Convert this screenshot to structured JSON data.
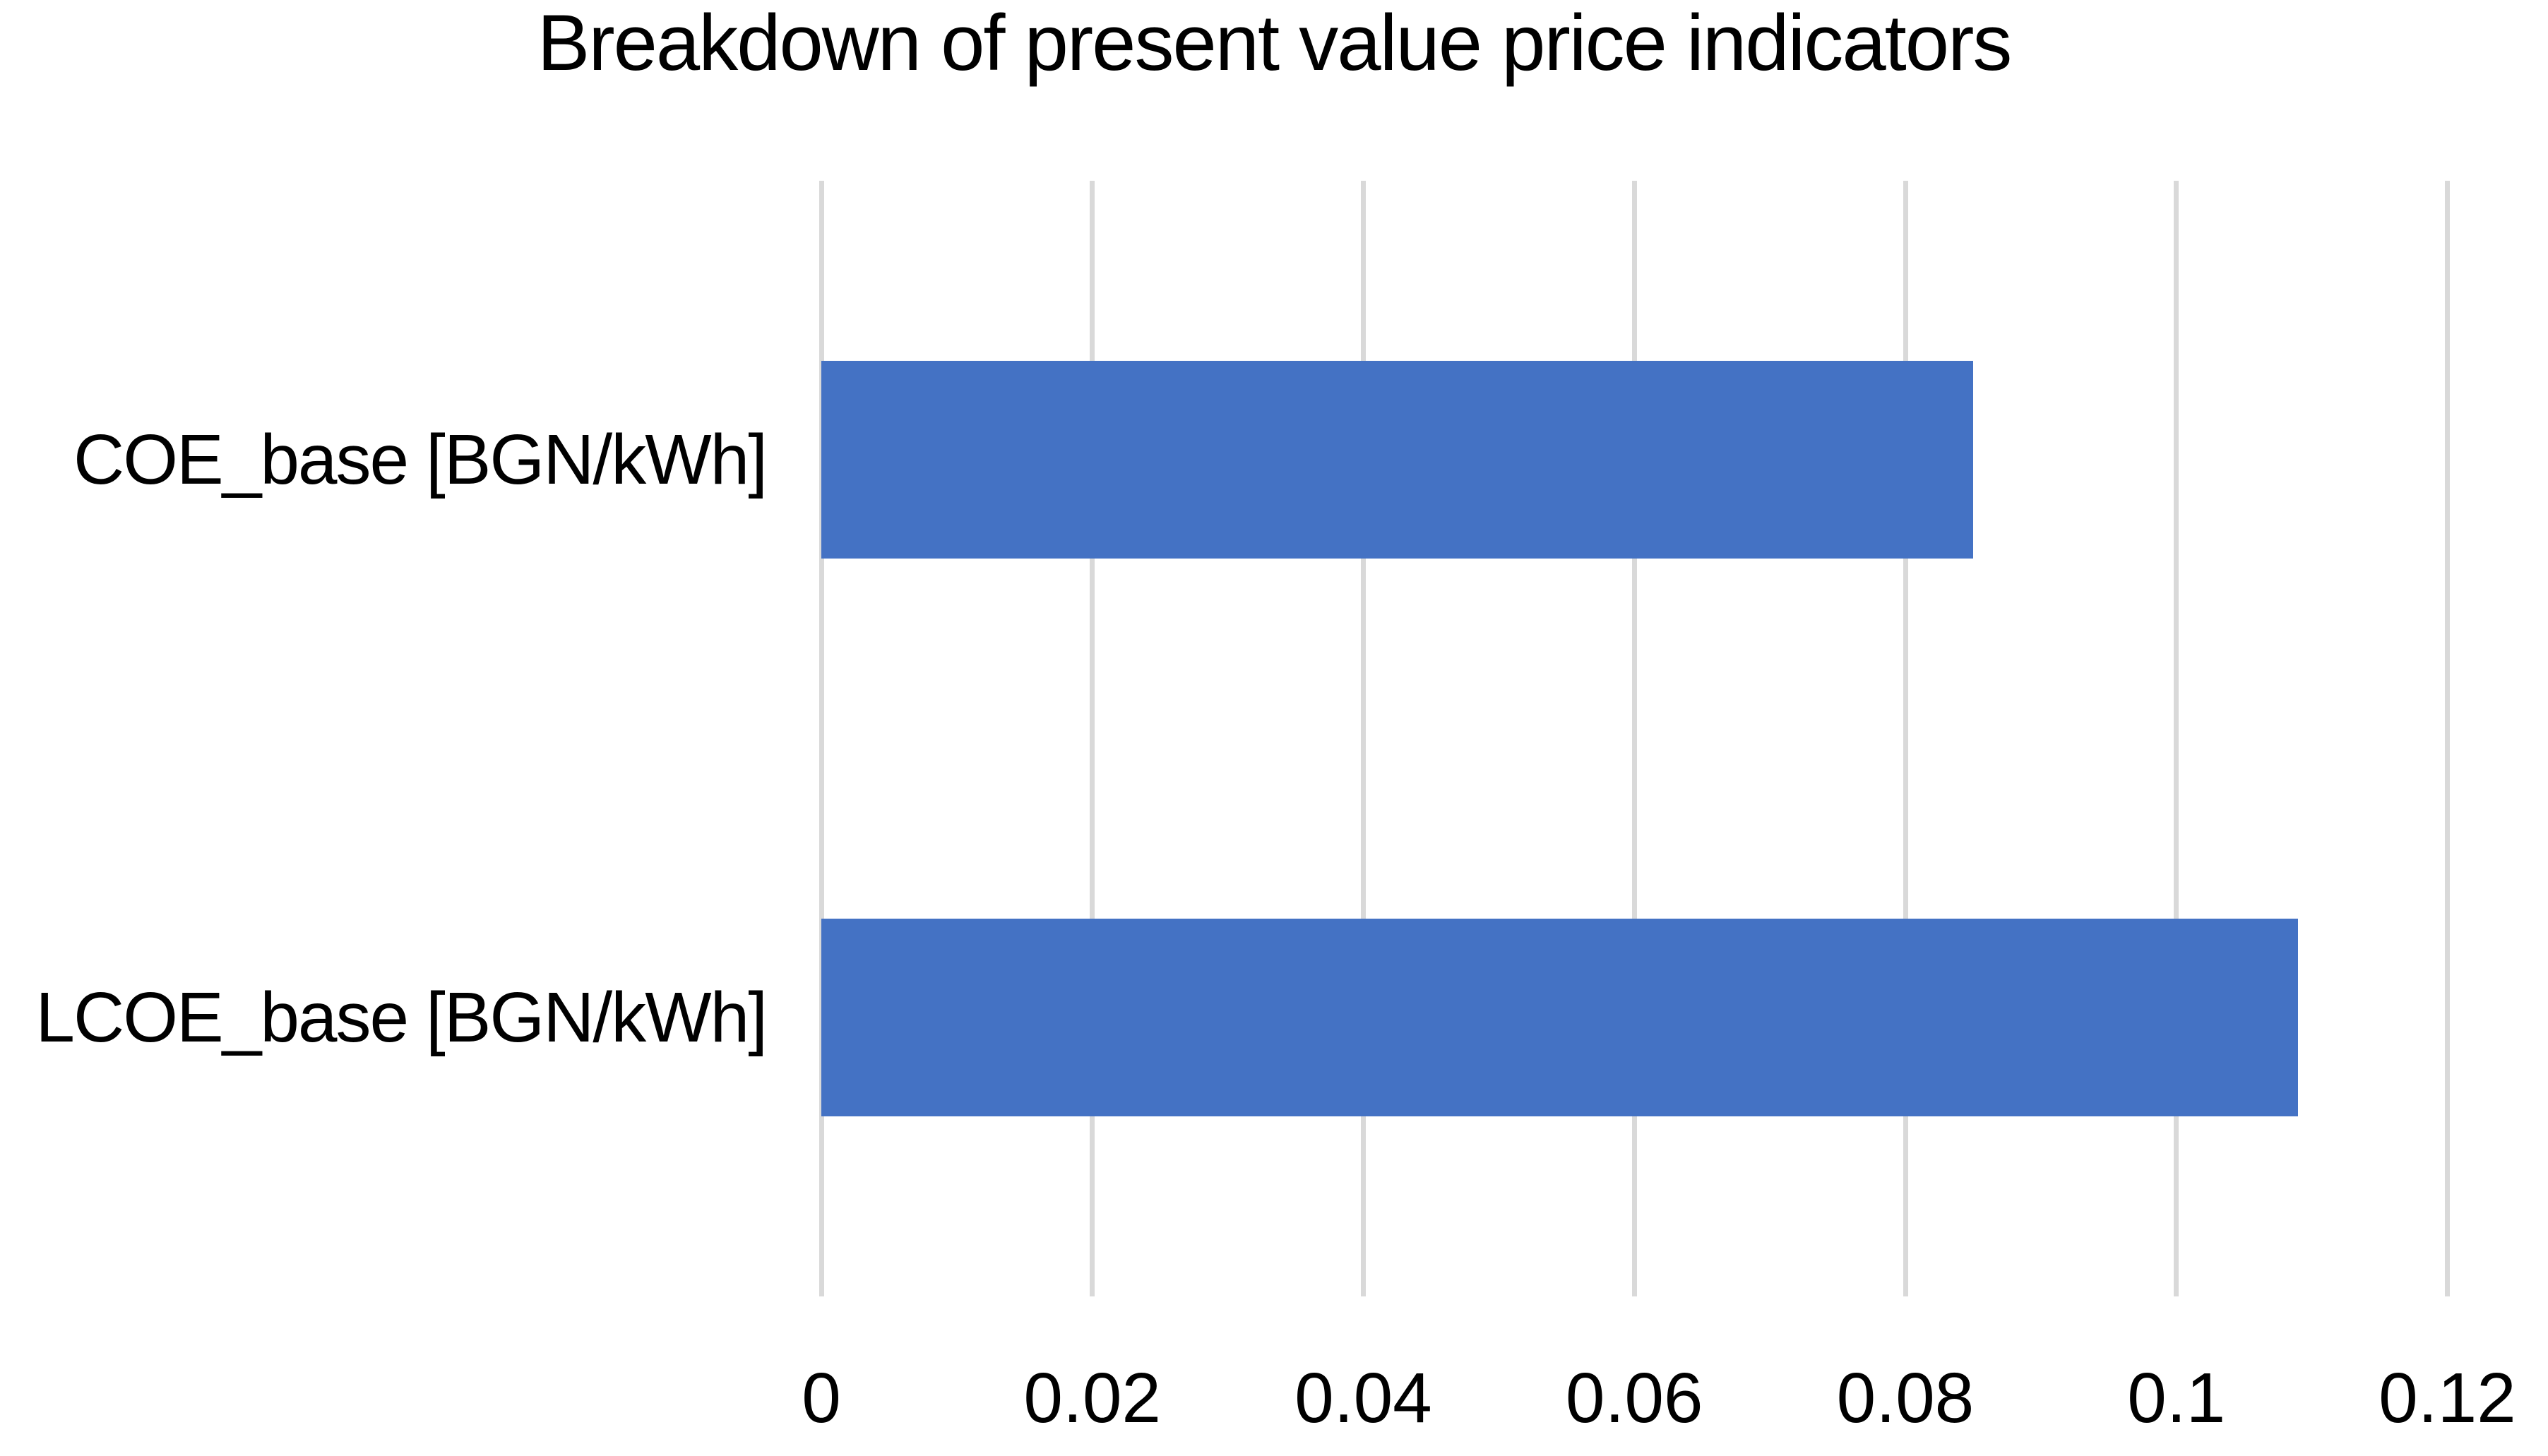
{
  "chart_data": {
    "type": "bar",
    "orientation": "horizontal",
    "title": "Breakdown of present value price indicators",
    "categories": [
      "COE_base [BGN/kWh]",
      "LCOE_base [BGN/kWh]"
    ],
    "values": [
      0.085,
      0.109
    ],
    "xlabel": "",
    "ylabel": "",
    "xlim": [
      0,
      0.12
    ],
    "x_ticks": [
      0,
      0.02,
      0.04,
      0.06,
      0.08,
      0.1,
      0.12
    ],
    "x_tick_labels": [
      "0",
      "0.02",
      "0.04",
      "0.06",
      "0.08",
      "0.1",
      "0.12"
    ],
    "grid": true,
    "legend": false,
    "colors": {
      "bar": "#4472C4",
      "gridline": "#D9D9D9",
      "text": "#000000",
      "background": "#FFFFFF"
    }
  }
}
